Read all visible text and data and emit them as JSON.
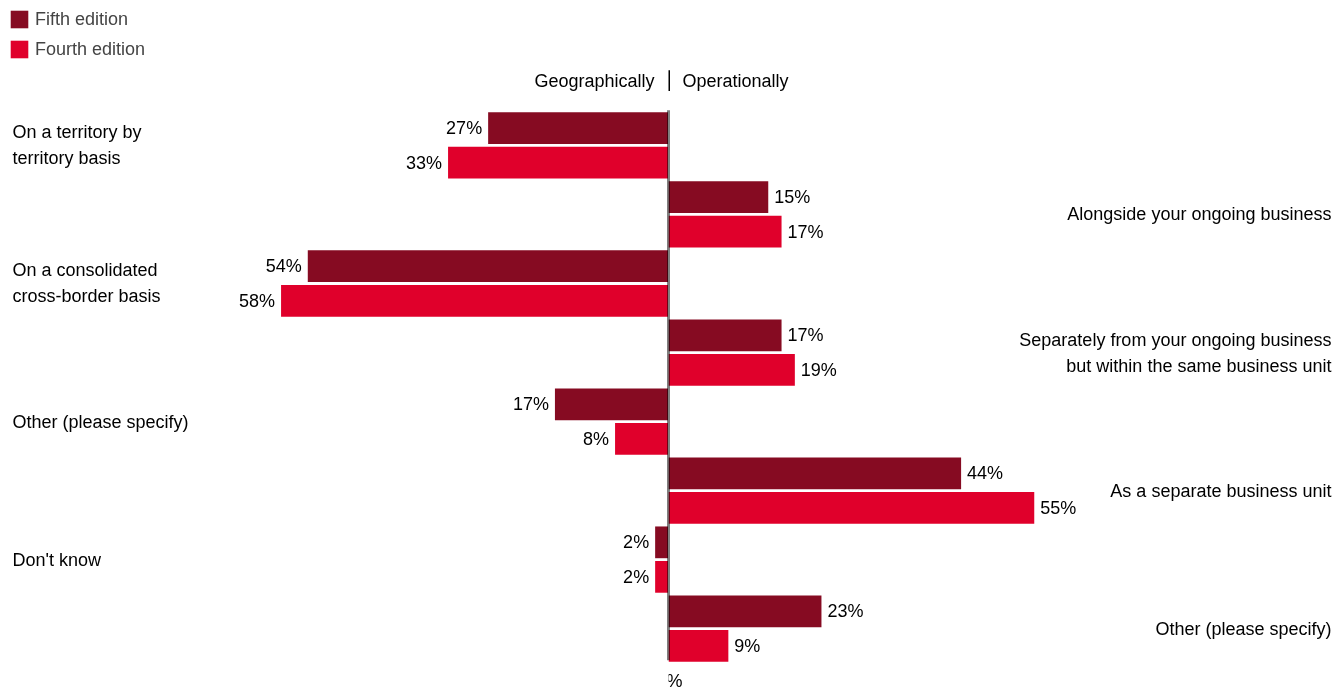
{
  "chart_data": [
    {
      "type": "bar",
      "orientation": "horizontal",
      "legend": "top left",
      "grid": false,
      "tick_labels": false,
      "xlim": [
        100,
        0
      ],
      "annotations": [
        "Geographically"
      ],
      "categories": [
        "On a territory by territory basis",
        "On a consolidated cross-border basis",
        "Other (please specify)",
        "Don't know"
      ],
      "series": [
        {
          "name": "Fifth edition",
          "color": "#860b22",
          "values": [
            27,
            54,
            17,
            2
          ],
          "value_labels": [
            "27%",
            "54%",
            "17%",
            "2%"
          ]
        },
        {
          "name": "Fourth edition",
          "color": "#e0002b",
          "values": [
            33,
            58,
            8,
            2
          ],
          "value_labels": [
            "33%",
            "58%",
            "8%",
            "2%"
          ]
        }
      ]
    },
    {
      "type": "bar",
      "orientation": "horizontal",
      "grid": false,
      "tick_labels": false,
      "xlim": [
        0,
        100
      ],
      "xlabel": "%",
      "annotations": [
        "Operationally"
      ],
      "categories": [
        "Alongside your ongoing business",
        "Separately from your ongoing business but within the same business unit",
        "As a separate business unit",
        "Other (please specify)"
      ],
      "series": [
        {
          "color": "#860b22",
          "values": [
            15,
            17,
            44,
            23
          ],
          "value_labels": [
            "15%",
            "17%",
            "44%",
            "23%"
          ]
        },
        {
          "color": "#e0002b",
          "values": [
            17,
            19,
            55,
            9
          ],
          "value_labels": [
            "17%",
            "19%",
            "55%",
            "9%"
          ]
        }
      ]
    }
  ]
}
